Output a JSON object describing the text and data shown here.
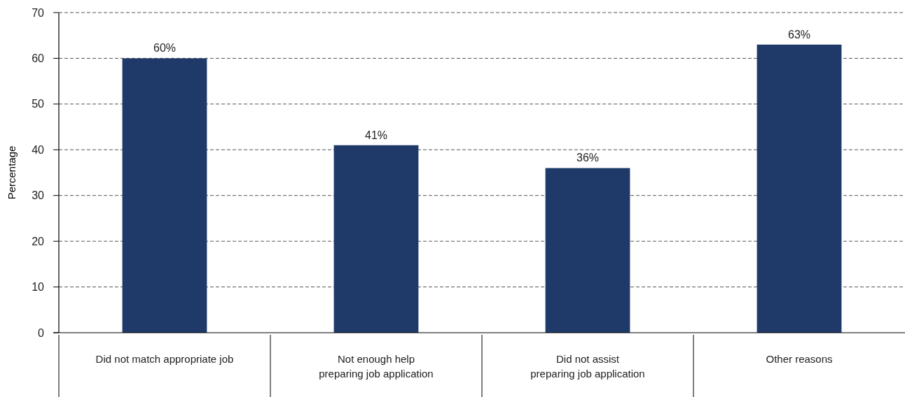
{
  "chart_data": {
    "type": "bar",
    "ylabel": "Percentage",
    "categories": [
      "Did not match appropriate job",
      "Not enough help\npreparing job application",
      "Did not assist\npreparing job application",
      "Other reasons"
    ],
    "values": [
      60,
      41,
      36,
      63
    ],
    "color": "#1f3a68",
    "value_labels": [
      "60%",
      "41%",
      "36%",
      "63%"
    ],
    "ylim": [
      0,
      70
    ],
    "yticks": [
      0,
      10,
      20,
      30,
      40,
      50,
      60,
      70
    ],
    "grid": "y"
  }
}
